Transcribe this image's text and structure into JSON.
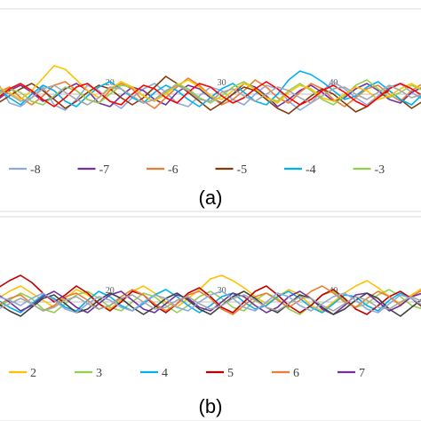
{
  "chart_data": [
    {
      "type": "line",
      "panel_label": "(a)",
      "title": "",
      "xlabel": "",
      "ylabel": "",
      "x_ticks": [
        "20",
        "30",
        "40"
      ],
      "xlim": [
        10,
        48
      ],
      "ylim": [
        -3,
        3
      ],
      "grid": false,
      "legend": "bottom",
      "series": [
        {
          "name": "-8",
          "color": "#8EA9DB",
          "values": [
            0.6,
            -0.5,
            -0.7,
            -0.2,
            0.4,
            -0.6,
            -0.9,
            -0.3,
            0.5,
            0.2,
            -0.4,
            -0.8,
            -0.2,
            0.3,
            0.6,
            0.1,
            -0.5,
            -0.7,
            -0.1,
            0.4,
            0.2,
            -0.3,
            -0.6,
            0.0,
            0.5,
            0.3,
            -0.4,
            -0.9,
            -0.5,
            0.2,
            0.7,
            0.3,
            -0.2,
            -0.6,
            -0.1,
            0.4,
            0.6,
            0.1,
            -0.3
          ]
        },
        {
          "name": "-7",
          "color": "#7030A0",
          "values": [
            -0.3,
            0.2,
            0.5,
            0.1,
            -0.4,
            -0.2,
            0.3,
            0.6,
            0.2,
            -0.5,
            -0.7,
            -0.1,
            0.4,
            0.2,
            -0.3,
            -0.6,
            0.1,
            0.5,
            0.3,
            -0.2,
            -0.5,
            0.0,
            0.6,
            0.4,
            -0.1,
            -0.7,
            -0.3,
            0.2,
            0.5,
            0.1,
            -0.4,
            -0.2,
            0.3,
            0.6,
            0.2,
            -0.3,
            -0.5,
            0.1,
            0.4
          ]
        },
        {
          "name": "-6",
          "color": "#ED7D31",
          "values": [
            0.1,
            0.4,
            -0.2,
            -0.6,
            -0.1,
            0.5,
            0.7,
            0.2,
            -0.3,
            -0.5,
            0.2,
            0.6,
            0.3,
            -0.4,
            -0.8,
            -0.2,
            0.4,
            0.9,
            0.5,
            -0.1,
            -0.6,
            -0.3,
            0.2,
            0.8,
            0.4,
            -0.2,
            -0.5,
            0.1,
            0.6,
            0.3,
            -0.3,
            -0.7,
            -0.2,
            0.3,
            0.5,
            0.0,
            -0.4,
            0.2,
            0.6
          ]
        },
        {
          "name": "-5",
          "color": "#843C0C",
          "values": [
            -0.5,
            -0.1,
            0.3,
            0.6,
            0.2,
            -0.3,
            -0.8,
            -0.4,
            0.1,
            0.5,
            0.3,
            -0.2,
            -0.6,
            -0.2,
            0.4,
            1.0,
            0.6,
            0.1,
            -0.4,
            -0.9,
            -0.5,
            0.0,
            0.4,
            0.2,
            -0.3,
            -0.8,
            -1.1,
            -0.6,
            -0.1,
            0.3,
            0.0,
            -0.5,
            -1.0,
            -0.7,
            -0.2,
            0.2,
            -0.3,
            -0.8,
            -0.4
          ]
        },
        {
          "name": "-4",
          "color": "#00B0F0",
          "values": [
            0.3,
            -0.2,
            -0.6,
            0.0,
            0.5,
            0.2,
            -0.4,
            -0.7,
            -0.1,
            0.4,
            0.7,
            0.3,
            -0.2,
            -0.5,
            0.1,
            0.5,
            0.2,
            -0.3,
            -0.7,
            -0.2,
            0.3,
            0.6,
            0.1,
            -0.4,
            -0.6,
            0.0,
            0.8,
            1.3,
            1.1,
            0.7,
            0.2,
            -0.3,
            -0.1,
            0.4,
            0.7,
            0.2,
            -0.3,
            -0.6,
            0.0
          ]
        },
        {
          "name": "-3",
          "color": "#92D050",
          "values": [
            0.0,
            0.3,
            0.1,
            -0.4,
            -0.6,
            -0.1,
            0.4,
            0.2,
            -0.3,
            -0.5,
            0.0,
            0.5,
            0.4,
            -0.1,
            -0.4,
            0.1,
            0.6,
            0.3,
            -0.2,
            -0.5,
            -0.1,
            0.4,
            0.7,
            0.3,
            -0.2,
            -0.4,
            0.2,
            0.6,
            0.2,
            -0.3,
            -0.6,
            -0.1,
            0.5,
            0.8,
            0.3,
            -0.2,
            0.1,
            0.5,
            0.2
          ]
        },
        {
          "name": "",
          "color": "#FFC000",
          "values": [
            0.4,
            0.1,
            -0.3,
            0.2,
            0.9,
            1.6,
            1.4,
            0.8,
            0.2,
            -0.2,
            0.3,
            0.7,
            0.4,
            -0.1,
            -0.4,
            0.0,
            0.5,
            0.8,
            0.4,
            -0.1,
            -0.3,
            0.2,
            0.6,
            0.3,
            -0.2,
            -0.5,
            0.1,
            0.5,
            0.3,
            -0.2,
            -0.4,
            0.0,
            0.4,
            0.2,
            -0.3,
            -0.1,
            0.3,
            0.6,
            0.2
          ]
        },
        {
          "name": "",
          "color": "#FF0000",
          "values": [
            -0.2,
            0.3,
            0.6,
            0.2,
            -0.3,
            -0.7,
            -0.2,
            0.4,
            0.6,
            0.1,
            -0.4,
            -0.6,
            0.0,
            0.5,
            0.3,
            -0.2,
            -0.5,
            0.1,
            0.6,
            0.4,
            -0.1,
            -0.5,
            -0.2,
            0.3,
            0.7,
            0.3,
            -0.2,
            -0.6,
            -0.3,
            0.2,
            0.5,
            0.1,
            -0.4,
            -0.7,
            -0.2,
            0.3,
            0.6,
            0.3,
            -0.1
          ]
        },
        {
          "name": "",
          "color": "#A5A5A5",
          "values": [
            0.2,
            0.0,
            -0.4,
            -0.2,
            0.3,
            0.5,
            0.1,
            -0.3,
            -0.6,
            -0.2,
            0.4,
            0.3,
            -0.1,
            -0.5,
            -0.3,
            0.2,
            0.5,
            0.2,
            -0.3,
            -0.4,
            0.1,
            0.3,
            -0.1,
            -0.4,
            0.0,
            0.4,
            0.2,
            -0.2,
            -0.5,
            -0.1,
            0.3,
            0.4,
            0.0,
            -0.3,
            0.1,
            0.5,
            0.2,
            -0.2,
            0.0
          ]
        }
      ]
    },
    {
      "type": "line",
      "panel_label": "(b)",
      "title": "",
      "xlabel": "",
      "ylabel": "",
      "x_ticks": [
        "20",
        "30",
        "40"
      ],
      "xlim": [
        10,
        48
      ],
      "ylim": [
        -3,
        3
      ],
      "grid": false,
      "legend": "bottom",
      "series": [
        {
          "name": "2",
          "color": "#FFC000",
          "values": [
            0.2,
            0.6,
            0.9,
            0.5,
            0.1,
            -0.3,
            0.2,
            0.7,
            0.4,
            -0.1,
            -0.4,
            0.1,
            0.6,
            0.9,
            0.5,
            0.0,
            -0.3,
            0.2,
            0.7,
            1.3,
            1.5,
            1.2,
            0.8,
            0.3,
            -0.1,
            0.3,
            0.7,
            0.4,
            -0.2,
            -0.5,
            0.0,
            0.5,
            0.9,
            1.2,
            0.8,
            0.3,
            -0.1,
            0.4,
            0.8
          ]
        },
        {
          "name": "3",
          "color": "#92D050",
          "values": [
            -0.3,
            0.1,
            0.5,
            0.2,
            -0.4,
            -0.6,
            -0.1,
            0.4,
            0.6,
            0.2,
            -0.3,
            -0.5,
            0.0,
            0.5,
            0.3,
            -0.2,
            -0.6,
            -0.2,
            0.3,
            0.6,
            0.2,
            -0.3,
            -0.5,
            0.1,
            0.5,
            0.2,
            -0.4,
            -0.7,
            -0.2,
            0.4,
            0.6,
            0.1,
            -0.3,
            -0.1,
            0.4,
            0.7,
            0.3,
            -0.2,
            -0.4
          ]
        },
        {
          "name": "4",
          "color": "#00B0F0",
          "values": [
            0.1,
            -0.3,
            -0.6,
            -0.1,
            0.4,
            0.2,
            -0.3,
            -0.5,
            0.1,
            0.6,
            0.3,
            -0.2,
            -0.5,
            -0.1,
            0.4,
            0.7,
            0.3,
            -0.2,
            -0.6,
            -0.2,
            0.3,
            0.5,
            0.0,
            -0.4,
            -0.2,
            0.3,
            0.6,
            0.2,
            -0.3,
            -0.6,
            -0.1,
            0.4,
            0.3,
            -0.2,
            -0.5,
            0.1,
            0.5,
            0.2,
            -0.3
          ]
        },
        {
          "name": "5",
          "color": "#C00000",
          "values": [
            0.8,
            1.2,
            1.5,
            1.1,
            0.5,
            0.0,
            0.4,
            0.9,
            0.5,
            -0.1,
            -0.5,
            0.0,
            0.6,
            0.4,
            -0.2,
            -0.6,
            -0.1,
            0.5,
            0.8,
            0.3,
            -0.3,
            -0.6,
            0.0,
            0.6,
            0.9,
            0.4,
            -0.2,
            -0.6,
            -0.2,
            0.4,
            0.7,
            0.2,
            -0.4,
            -0.7,
            -0.2,
            0.3,
            0.6,
            0.2,
            -0.3
          ]
        },
        {
          "name": "6",
          "color": "#ED7D31",
          "values": [
            -0.2,
            0.2,
            0.4,
            -0.1,
            -0.5,
            -0.2,
            0.3,
            0.5,
            0.1,
            -0.4,
            -0.2,
            0.3,
            0.7,
            0.4,
            -0.1,
            -0.5,
            -0.1,
            0.4,
            0.6,
            0.2,
            -0.4,
            -0.7,
            -0.2,
            0.3,
            0.5,
            0.1,
            -0.3,
            0.1,
            0.6,
            0.9,
            0.5,
            0.0,
            -0.3,
            0.2,
            0.6,
            0.3,
            -0.2,
            0.3,
            0.7
          ]
        },
        {
          "name": "7",
          "color": "#7030A0",
          "values": [
            0.4,
            0.0,
            -0.5,
            -0.2,
            0.3,
            0.6,
            0.2,
            -0.3,
            -0.6,
            -0.1,
            0.4,
            0.6,
            0.1,
            -0.4,
            -0.6,
            -0.1,
            0.4,
            0.2,
            -0.3,
            -0.5,
            0.0,
            0.5,
            0.3,
            -0.2,
            -0.6,
            -0.3,
            0.3,
            0.6,
            0.2,
            -0.4,
            -0.7,
            -0.2,
            0.4,
            0.5,
            0.0,
            -0.5,
            -0.2,
            0.3,
            0.5
          ]
        },
        {
          "name": "",
          "color": "#404040",
          "values": [
            -0.1,
            -0.5,
            -0.8,
            -0.3,
            0.2,
            0.4,
            -0.1,
            -0.6,
            -0.4,
            0.1,
            0.5,
            0.2,
            -0.3,
            -0.7,
            -0.3,
            0.2,
            0.5,
            0.1,
            -0.4,
            -0.7,
            -0.2,
            0.3,
            0.6,
            0.2,
            -0.3,
            -0.6,
            -0.1,
            0.4,
            0.2,
            -0.3,
            -0.7,
            -0.4,
            0.1,
            0.5,
            0.2,
            -0.4,
            -0.8,
            -0.3,
            0.2
          ]
        },
        {
          "name": "",
          "color": "#8EA9DB",
          "values": [
            0.3,
            0.1,
            -0.2,
            0.2,
            0.5,
            0.1,
            -0.4,
            -0.6,
            -0.1,
            0.3,
            0.1,
            -0.3,
            -0.5,
            0.0,
            0.4,
            0.2,
            -0.3,
            -0.5,
            0.0,
            0.4,
            0.6,
            0.2,
            -0.3,
            -0.5,
            0.0,
            0.5,
            0.3,
            -0.2,
            -0.5,
            -0.1,
            0.3,
            0.5,
            0.1,
            -0.4,
            -0.6,
            -0.1,
            0.4,
            0.2,
            -0.2
          ]
        },
        {
          "name": "",
          "color": "#A5A5A5",
          "values": [
            -0.4,
            -0.1,
            0.2,
            -0.1,
            -0.5,
            -0.3,
            0.1,
            0.3,
            -0.1,
            -0.4,
            -0.2,
            0.2,
            0.4,
            0.0,
            -0.4,
            -0.3,
            0.1,
            0.3,
            -0.1,
            -0.4,
            -0.2,
            0.2,
            0.4,
            0.1,
            -0.3,
            -0.5,
            -0.1,
            0.3,
            0.2,
            -0.2,
            -0.5,
            -0.1,
            0.3,
            0.1,
            -0.3,
            -0.4,
            0.0,
            0.3,
            0.0
          ]
        }
      ]
    }
  ]
}
